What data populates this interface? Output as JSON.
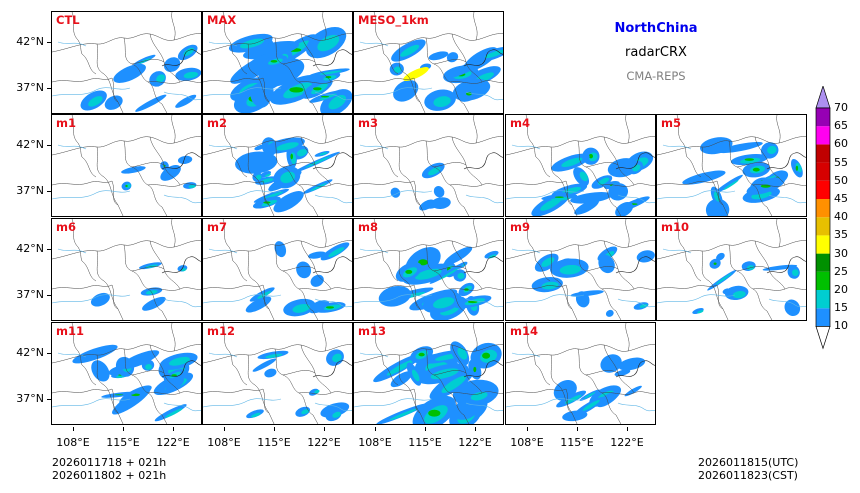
{
  "header": {
    "region": "NorthChina",
    "product": "radarCRX",
    "system": "CMA-REPS",
    "region_color": "#0000ee",
    "system_color": "#808080"
  },
  "panels": [
    {
      "label": "CTL",
      "intensity": 0.35
    },
    {
      "label": "MAX",
      "intensity": 1.0
    },
    {
      "label": "MESO_1km",
      "intensity": 0.6
    },
    {
      "label": "m1",
      "intensity": 0.15
    },
    {
      "label": "m2",
      "intensity": 0.8
    },
    {
      "label": "m3",
      "intensity": 0.1
    },
    {
      "label": "m4",
      "intensity": 0.75
    },
    {
      "label": "m5",
      "intensity": 0.7
    },
    {
      "label": "m6",
      "intensity": 0.08
    },
    {
      "label": "m7",
      "intensity": 0.45
    },
    {
      "label": "m8",
      "intensity": 0.85
    },
    {
      "label": "m9",
      "intensity": 0.5
    },
    {
      "label": "m10",
      "intensity": 0.35
    },
    {
      "label": "m11",
      "intensity": 0.75
    },
    {
      "label": "m12",
      "intensity": 0.3
    },
    {
      "label": "m13",
      "intensity": 0.95
    },
    {
      "label": "m14",
      "intensity": 0.45
    }
  ],
  "axes": {
    "lat_labels": [
      "42°N",
      "37°N"
    ],
    "lon_labels": [
      "108°E",
      "115°E",
      "122°E"
    ]
  },
  "colorbar": {
    "levels": [
      "10",
      "15",
      "20",
      "25",
      "30",
      "35",
      "40",
      "45",
      "50",
      "55",
      "60",
      "65",
      "70"
    ],
    "colors": [
      "#1e90ff",
      "#00ced1",
      "#00c000",
      "#009000",
      "#ffff00",
      "#e7c000",
      "#ff9000",
      "#ff0000",
      "#d60000",
      "#c00000",
      "#ff00f0",
      "#9600b4",
      "#ad90f0"
    ]
  },
  "footer": {
    "init_line1": "2026011718  +  021h",
    "init_line2": "2026011802  +  021h",
    "valid_utc": "2026011815(UTC)",
    "valid_cst": "2026011823(CST)"
  }
}
